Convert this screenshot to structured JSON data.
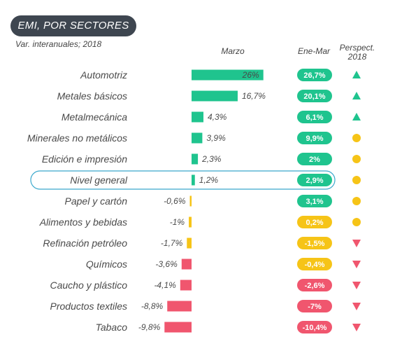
{
  "title": "EMI, POR SECTORES",
  "subtitle": "Var. interanuales; 2018",
  "columns": {
    "marzo": "Marzo",
    "ene_mar": "Ene-Mar",
    "perspect_1": "Perspect.",
    "perspect_2": "2018"
  },
  "colors": {
    "positive_bar": "#1fc48e",
    "negative_bar": "#f0566e",
    "small_bar": "#f6c417",
    "pill_green": "#1fc48e",
    "pill_yellow": "#f6c417",
    "pill_red": "#f0566e",
    "highlight_border": "#3aa8cc",
    "title_bg": "#3e4650"
  },
  "chart_data": {
    "type": "bar",
    "orientation": "horizontal",
    "title": "EMI, POR SECTORES",
    "subtitle": "Var. interanuales; 2018",
    "categories": [
      "Automotriz",
      "Metales básicos",
      "Metalmecánica",
      "Minerales no metálicos",
      "Edición e impresión",
      "Nivel general",
      "Papel y cartón",
      "Alimentos y bebidas",
      "Refinación petróleo",
      "Químicos",
      "Caucho y plástico",
      "Productos textiles",
      "Tabaco"
    ],
    "series": [
      {
        "name": "Marzo",
        "values": [
          26,
          16.7,
          4.3,
          3.9,
          2.3,
          1.2,
          -0.6,
          -1,
          -1.7,
          -3.6,
          -4.1,
          -8.8,
          -9.8
        ]
      }
    ],
    "value_labels": [
      "26%",
      "16,7%",
      "4,3%",
      "3,9%",
      "2,3%",
      "1,2%",
      "-0,6%",
      "-1%",
      "-1,7%",
      "-3,6%",
      "-4,1%",
      "-8,8%",
      "-9,8%"
    ],
    "ene_mar": {
      "values": [
        26.7,
        20.1,
        6.1,
        9.9,
        2,
        2.9,
        3.1,
        0.2,
        -1.5,
        -0.4,
        -2.6,
        -7,
        -10.4
      ],
      "labels": [
        "26,7%",
        "20,1%",
        "6,1%",
        "9,9%",
        "2%",
        "2,9%",
        "3,1%",
        "0,2%",
        "-1,5%",
        "-0,4%",
        "-2,6%",
        "-7%",
        "-10,4%"
      ],
      "colors": [
        "green",
        "green",
        "green",
        "green",
        "green",
        "green",
        "green",
        "yellow",
        "yellow",
        "yellow",
        "red",
        "red",
        "red"
      ]
    },
    "perspectiva_2018": [
      "up",
      "up",
      "up",
      "neutral",
      "neutral",
      "neutral",
      "neutral",
      "neutral",
      "down",
      "down",
      "down",
      "down",
      "down"
    ],
    "highlight": "Nivel general"
  }
}
